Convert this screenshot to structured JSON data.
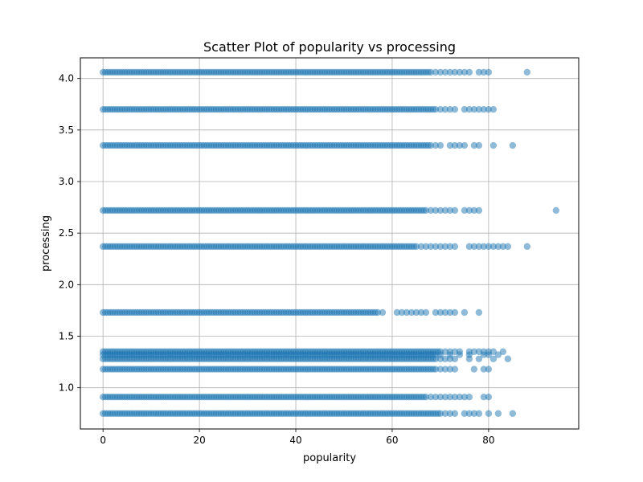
{
  "chart_data": {
    "type": "scatter",
    "title": "Scatter Plot of popularity vs processing",
    "xlabel": "popularity",
    "ylabel": "processing",
    "xlim": [
      -4.7,
      98.7
    ],
    "ylim": [
      0.6,
      4.2
    ],
    "grid": true,
    "color": "#1f77b4",
    "marker_alpha": 0.5,
    "x_ticks": [
      {
        "value": 0,
        "label": "0"
      },
      {
        "value": 20,
        "label": "20"
      },
      {
        "value": 40,
        "label": "40"
      },
      {
        "value": 60,
        "label": "60"
      },
      {
        "value": 80,
        "label": "80"
      }
    ],
    "y_ticks": [
      {
        "value": 1.0,
        "label": "1.0"
      },
      {
        "value": 1.5,
        "label": "1.5"
      },
      {
        "value": 2.0,
        "label": "2.0"
      },
      {
        "value": 2.5,
        "label": "2.5"
      },
      {
        "value": 3.0,
        "label": "3.0"
      },
      {
        "value": 3.5,
        "label": "3.5"
      },
      {
        "value": 4.0,
        "label": "4.0"
      }
    ],
    "series": [
      {
        "y": 4.06,
        "dense_x": [
          0,
          68
        ],
        "extra_x": [
          69,
          70,
          71,
          72,
          73,
          74,
          75,
          76,
          78,
          79,
          80,
          88
        ]
      },
      {
        "y": 3.7,
        "dense_x": [
          0,
          69
        ],
        "extra_x": [
          70,
          71,
          72,
          73,
          75,
          76,
          77,
          78,
          79,
          80,
          81
        ]
      },
      {
        "y": 3.35,
        "dense_x": [
          0,
          68
        ],
        "extra_x": [
          69,
          70,
          72,
          73,
          74,
          75,
          77,
          78,
          81,
          85
        ]
      },
      {
        "y": 2.72,
        "dense_x": [
          0,
          67
        ],
        "extra_x": [
          68,
          69,
          70,
          71,
          72,
          73,
          75,
          76,
          77,
          78,
          94
        ]
      },
      {
        "y": 2.37,
        "dense_x": [
          0,
          65
        ],
        "extra_x": [
          66,
          67,
          68,
          69,
          70,
          71,
          72,
          73,
          76,
          77,
          78,
          79,
          80,
          81,
          82,
          83,
          84,
          88
        ]
      },
      {
        "y": 1.73,
        "dense_x": [
          0,
          57
        ],
        "extra_x": [
          58,
          61,
          62,
          63,
          64,
          65,
          66,
          67,
          69,
          70,
          71,
          72,
          73,
          75,
          78
        ]
      },
      {
        "y": 1.35,
        "dense_x": [
          0,
          70
        ],
        "extra_x": [
          71,
          72,
          73,
          74,
          76,
          77,
          78,
          79,
          80,
          81,
          83
        ]
      },
      {
        "y": 1.32,
        "dense_x": [
          0,
          69
        ],
        "extra_x": [
          70,
          72,
          74,
          76,
          79,
          80,
          82
        ]
      },
      {
        "y": 1.28,
        "dense_x": [
          0,
          69
        ],
        "extra_x": [
          70,
          71,
          72,
          73,
          76,
          78,
          81,
          84
        ]
      },
      {
        "y": 1.18,
        "dense_x": [
          0,
          69
        ],
        "extra_x": [
          70,
          71,
          72,
          73,
          77,
          79,
          80
        ]
      },
      {
        "y": 0.91,
        "dense_x": [
          0,
          67
        ],
        "extra_x": [
          68,
          69,
          70,
          71,
          72,
          73,
          74,
          75,
          76,
          79,
          80
        ]
      },
      {
        "y": 0.75,
        "dense_x": [
          0,
          70
        ],
        "extra_x": [
          71,
          72,
          73,
          75,
          76,
          77,
          78,
          80,
          82,
          85
        ]
      }
    ]
  }
}
